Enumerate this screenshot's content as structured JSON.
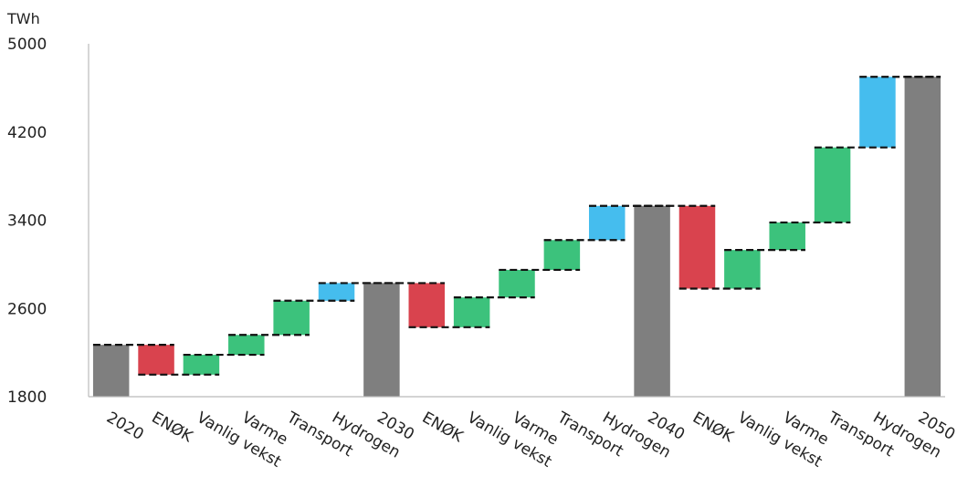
{
  "chart_data": {
    "type": "bar",
    "subtype": "waterfall",
    "unit": "TWh",
    "ylim": [
      1800,
      5000
    ],
    "yticks": [
      "1800",
      "2600",
      "3400",
      "4200",
      "5000"
    ],
    "grid": false,
    "legend": "none",
    "categories": [
      "2020",
      "ENØK",
      "Vanlig vekst",
      "Varme",
      "Transport",
      "Hydrogen",
      "2030",
      "ENØK",
      "Vanlig vekst",
      "Varme",
      "Transport",
      "Hydrogen",
      "2040",
      "ENØK",
      "Vanlig vekst",
      "Varme",
      "Transport",
      "Hydrogen",
      "2050"
    ],
    "bars": [
      {
        "kind": "total",
        "low": 1800,
        "high": 2270
      },
      {
        "kind": "decrease",
        "low": 2000,
        "high": 2270
      },
      {
        "kind": "increase",
        "low": 2000,
        "high": 2180
      },
      {
        "kind": "increase",
        "low": 2180,
        "high": 2360
      },
      {
        "kind": "increase",
        "low": 2360,
        "high": 2670
      },
      {
        "kind": "hydrogen",
        "low": 2670,
        "high": 2830
      },
      {
        "kind": "total",
        "low": 1800,
        "high": 2830
      },
      {
        "kind": "decrease",
        "low": 2430,
        "high": 2830
      },
      {
        "kind": "increase",
        "low": 2430,
        "high": 2700
      },
      {
        "kind": "increase",
        "low": 2700,
        "high": 2950
      },
      {
        "kind": "increase",
        "low": 2950,
        "high": 3220
      },
      {
        "kind": "hydrogen",
        "low": 3220,
        "high": 3530
      },
      {
        "kind": "total",
        "low": 1800,
        "high": 3530
      },
      {
        "kind": "decrease",
        "low": 2780,
        "high": 3530
      },
      {
        "kind": "increase",
        "low": 2780,
        "high": 3130
      },
      {
        "kind": "increase",
        "low": 3130,
        "high": 3380
      },
      {
        "kind": "increase",
        "low": 3380,
        "high": 4060
      },
      {
        "kind": "hydrogen",
        "low": 4060,
        "high": 4700
      },
      {
        "kind": "total",
        "low": 1800,
        "high": 4700
      }
    ],
    "colors": {
      "total": "#7f7f7f",
      "decrease": "#d9434e",
      "increase": "#3cc27c",
      "hydrogen": "#45bdee"
    }
  }
}
